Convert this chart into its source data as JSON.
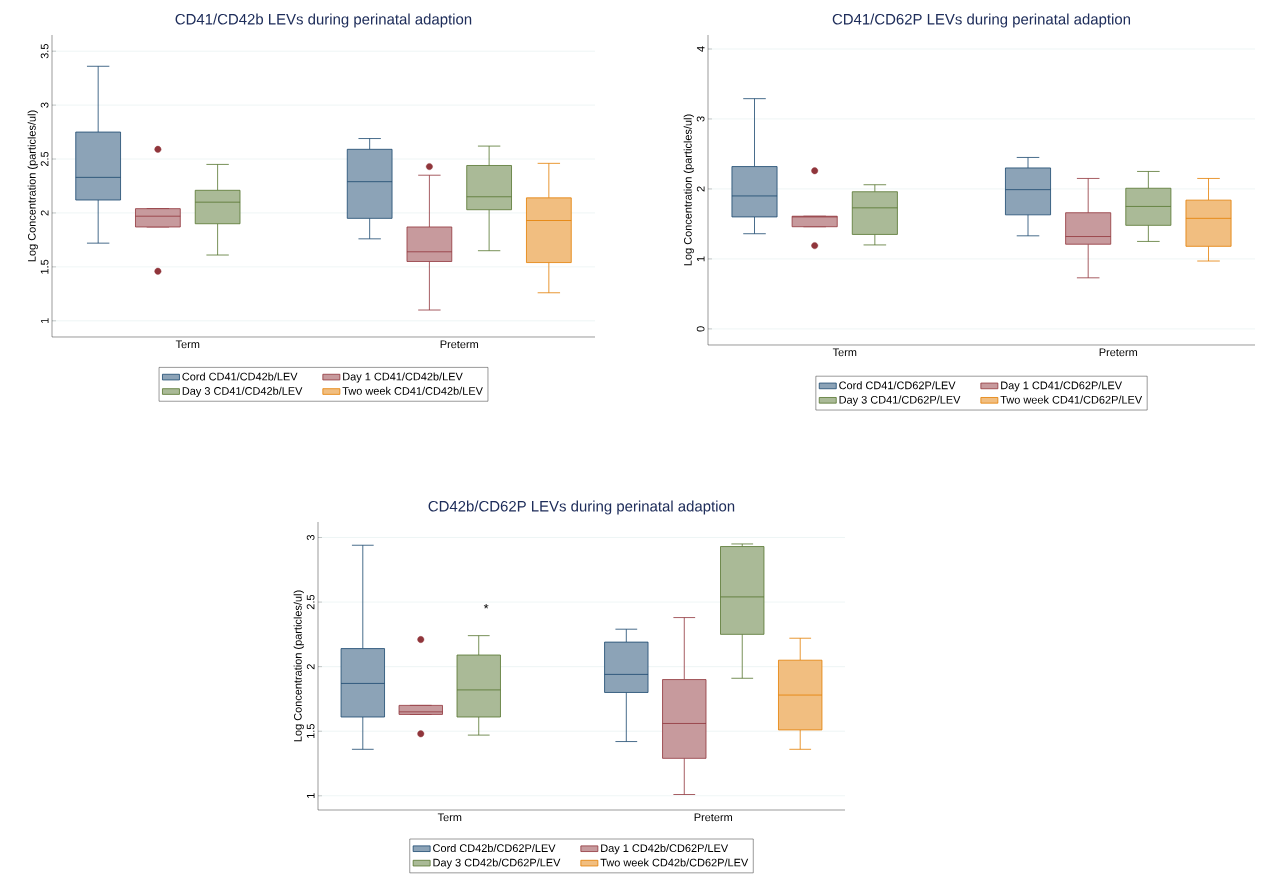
{
  "chart_data": [
    {
      "type": "box",
      "title": "CD41/CD42b LEVs during perinatal adaption",
      "ylabel": "Log Concentration (particles/ul)",
      "categories": [
        "Term",
        "Preterm"
      ],
      "ylim": [
        0.85,
        3.65
      ],
      "yticks": [
        1,
        1.5,
        2,
        2.5,
        3,
        3.5
      ],
      "grid": "y",
      "legend": "bottom",
      "series": [
        {
          "name": "Cord CD41/CD42b/LEV",
          "color": "#1a476f",
          "boxes": [
            {
              "low": 1.72,
              "q1": 2.12,
              "median": 2.33,
              "q3": 2.75,
              "high": 3.36
            },
            {
              "low": 1.76,
              "q1": 1.95,
              "median": 2.29,
              "q3": 2.59,
              "high": 2.69
            }
          ]
        },
        {
          "name": "Day 1 CD41/CD42b/LEV",
          "color": "#90353b",
          "boxes": [
            {
              "low": 1.87,
              "q1": 1.87,
              "median": 1.97,
              "q3": 2.04,
              "high": 2.04,
              "outliers": [
                2.59,
                1.46
              ]
            },
            {
              "low": 1.1,
              "q1": 1.55,
              "median": 1.64,
              "q3": 1.87,
              "high": 2.35,
              "outliers": [
                2.43
              ]
            }
          ]
        },
        {
          "name": "Day 3 CD41/CD42b/LEV",
          "color": "#55752f",
          "boxes": [
            {
              "low": 1.61,
              "q1": 1.9,
              "median": 2.1,
              "q3": 2.21,
              "high": 2.45
            },
            {
              "low": 1.65,
              "q1": 2.03,
              "median": 2.15,
              "q3": 2.44,
              "high": 2.62
            }
          ]
        },
        {
          "name": "Two week CD41/CD42b/LEV",
          "color": "#e37e00",
          "boxes": [
            null,
            {
              "low": 1.26,
              "q1": 1.54,
              "median": 1.93,
              "q3": 2.14,
              "high": 2.46
            }
          ]
        }
      ]
    },
    {
      "type": "box",
      "title": "CD41/CD62P LEVs during perinatal adaption",
      "ylabel": "Log Concentration (particles/ul)",
      "categories": [
        "Term",
        "Preterm"
      ],
      "ylim": [
        -0.23,
        4.2
      ],
      "yticks": [
        0,
        1,
        2,
        3,
        4
      ],
      "grid": "y",
      "legend": "bottom",
      "series": [
        {
          "name": "Cord CD41/CD62P/LEV",
          "color": "#1a476f",
          "boxes": [
            {
              "low": 1.36,
              "q1": 1.6,
              "median": 1.9,
              "q3": 2.32,
              "high": 3.29
            },
            {
              "low": 1.33,
              "q1": 1.63,
              "median": 1.99,
              "q3": 2.3,
              "high": 2.45
            }
          ]
        },
        {
          "name": "Day 1 CD41/CD62P/LEV",
          "color": "#90353b",
          "boxes": [
            {
              "low": 1.46,
              "q1": 1.46,
              "median": 1.6,
              "q3": 1.61,
              "high": 1.61,
              "outliers": [
                2.26,
                1.19
              ]
            },
            {
              "low": 0.73,
              "q1": 1.21,
              "median": 1.32,
              "q3": 1.66,
              "high": 2.15
            }
          ]
        },
        {
          "name": "Day 3 CD41/CD62P/LEV",
          "color": "#55752f",
          "boxes": [
            {
              "low": 1.2,
              "q1": 1.35,
              "median": 1.73,
              "q3": 1.96,
              "high": 2.06
            },
            {
              "low": 1.25,
              "q1": 1.48,
              "median": 1.75,
              "q3": 2.01,
              "high": 2.25
            }
          ]
        },
        {
          "name": "Two week CD41/CD62P/LEV",
          "color": "#e37e00",
          "boxes": [
            null,
            {
              "low": 0.97,
              "q1": 1.18,
              "median": 1.58,
              "q3": 1.84,
              "high": 2.15
            }
          ]
        }
      ]
    },
    {
      "type": "box",
      "title": "CD42b/CD62P LEVs during perinatal adaption",
      "ylabel": "Log Concentration (particles/ul)",
      "categories": [
        "Term",
        "Preterm"
      ],
      "ylim": [
        0.89,
        3.12
      ],
      "yticks": [
        1,
        1.5,
        2,
        2.5,
        3
      ],
      "grid": "y",
      "legend": "bottom",
      "annotations": [
        "*"
      ],
      "series": [
        {
          "name": "Cord CD42b/CD62P/LEV",
          "color": "#1a476f",
          "boxes": [
            {
              "low": 1.36,
              "q1": 1.61,
              "median": 1.87,
              "q3": 2.14,
              "high": 2.94
            },
            {
              "low": 1.42,
              "q1": 1.8,
              "median": 1.94,
              "q3": 2.19,
              "high": 2.29
            }
          ]
        },
        {
          "name": "Day 1 CD42b/CD62P/LEV",
          "color": "#90353b",
          "boxes": [
            {
              "low": 1.63,
              "q1": 1.63,
              "median": 1.65,
              "q3": 1.7,
              "high": 1.7,
              "outliers": [
                2.21,
                1.48
              ]
            },
            {
              "low": 1.01,
              "q1": 1.29,
              "median": 1.56,
              "q3": 1.9,
              "high": 2.38
            }
          ]
        },
        {
          "name": "Day 3 CD42b/CD62P/LEV",
          "color": "#55752f",
          "boxes": [
            {
              "low": 1.47,
              "q1": 1.61,
              "median": 1.82,
              "q3": 2.09,
              "high": 2.24
            },
            {
              "low": 1.91,
              "q1": 2.25,
              "median": 2.54,
              "q3": 2.93,
              "high": 2.95
            }
          ]
        },
        {
          "name": "Two week CD42b/CD62P/LEV",
          "color": "#e37e00",
          "boxes": [
            null,
            {
              "low": 1.36,
              "q1": 1.51,
              "median": 1.78,
              "q3": 2.05,
              "high": 2.22
            }
          ]
        }
      ]
    }
  ]
}
